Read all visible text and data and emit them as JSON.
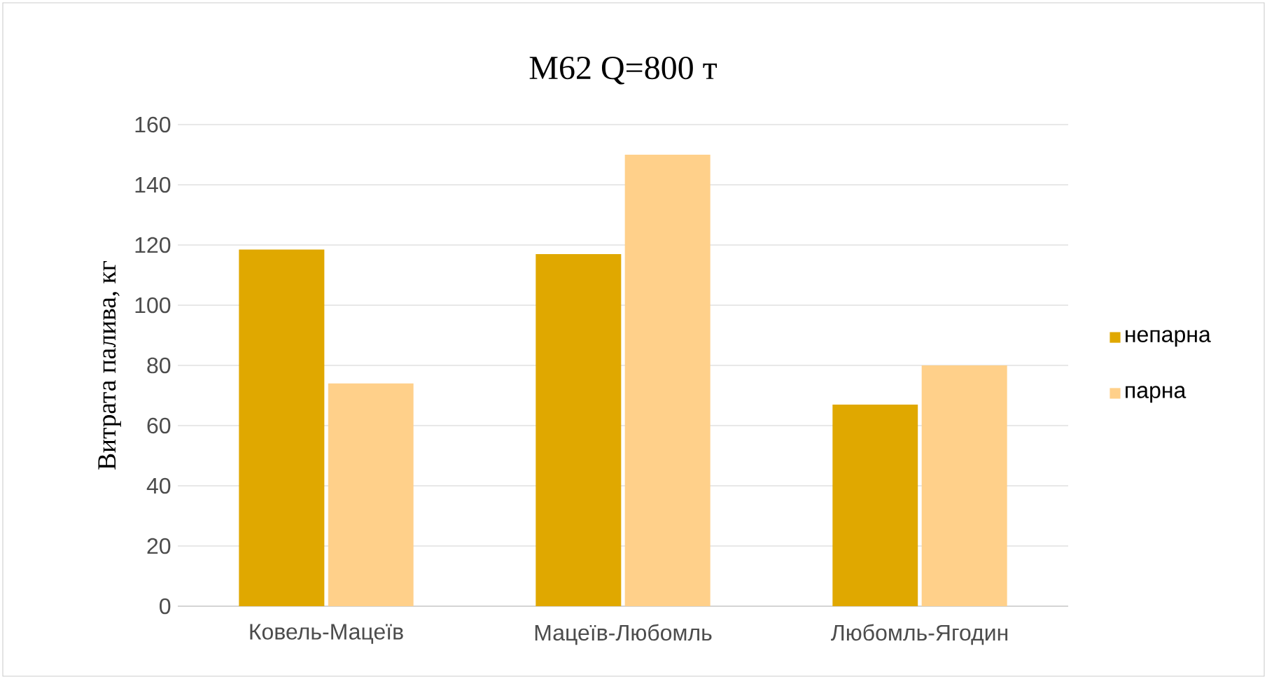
{
  "chart_data": {
    "type": "bar",
    "title": "M62 Q=800 т",
    "ylabel": "Витрата палива, кг",
    "categories": [
      "Ковель-Мацеїв",
      "Мацеїв-Любомль",
      "Любомль-Ягодин"
    ],
    "series": [
      {
        "name": "непарна",
        "color": "#e0a800",
        "values": [
          118.5,
          117,
          67
        ]
      },
      {
        "name": "парна",
        "color": "#ffd08a",
        "values": [
          74,
          150,
          80
        ]
      }
    ],
    "ylim": [
      0,
      160
    ],
    "yticks": [
      0,
      20,
      40,
      60,
      80,
      100,
      120,
      140,
      160
    ],
    "grid": "y",
    "legend": "right"
  }
}
